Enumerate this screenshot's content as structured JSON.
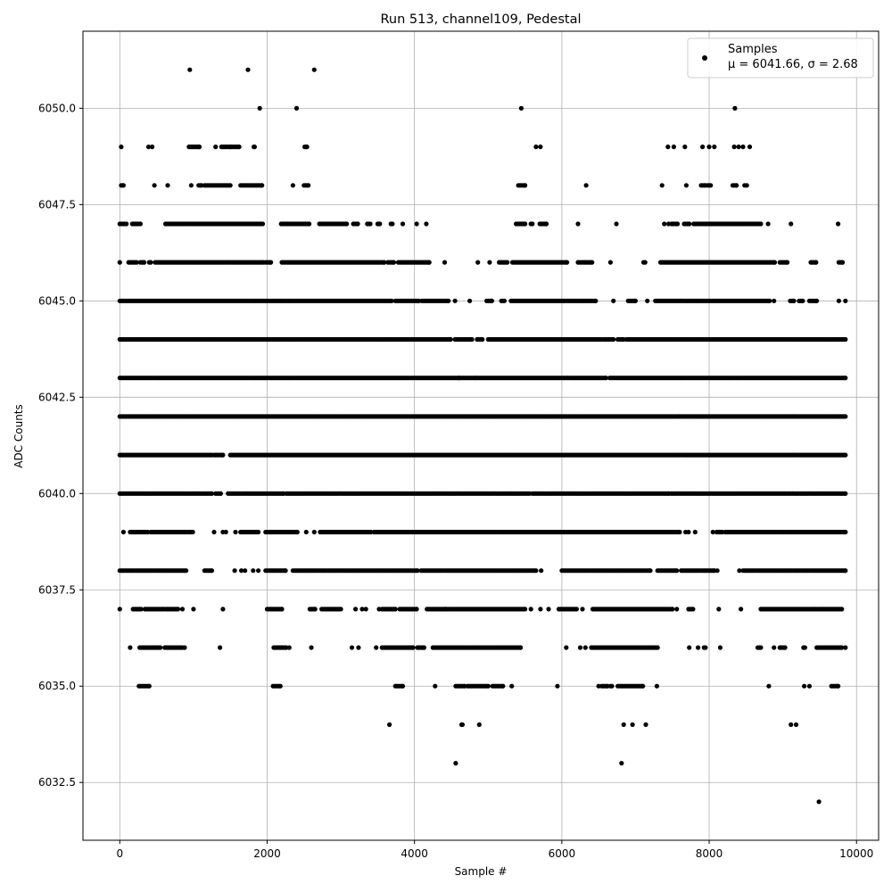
{
  "chart_data": {
    "type": "scatter",
    "title": "Run 513, channel109, Pedestal",
    "xlabel": "Sample #",
    "ylabel": "ADC Counts",
    "xlim": [
      -500,
      10300
    ],
    "ylim": [
      6031,
      6052
    ],
    "xticks": [
      0,
      2000,
      4000,
      6000,
      8000,
      10000
    ],
    "xtick_labels": [
      "0",
      "2000",
      "4000",
      "6000",
      "8000",
      "10000"
    ],
    "yticks": [
      6032.5,
      6035.0,
      6037.5,
      6040.0,
      6042.5,
      6045.0,
      6047.5,
      6050.0
    ],
    "ytick_labels": [
      "6032.5",
      "6035.0",
      "6037.5",
      "6040.0",
      "6042.5",
      "6045.0",
      "6047.5",
      "6050.0"
    ],
    "grid": true,
    "legend": {
      "position": "top-right",
      "entries": [
        "Samples",
        "μ = 6041.66, σ = 2.68"
      ]
    },
    "marker_color": "#000000",
    "series": [
      {
        "name": "Samples",
        "levels": [
          {
            "y": 6032,
            "x": [
              9490
            ]
          },
          {
            "y": 6033,
            "x": [
              4560,
              6810
            ]
          },
          {
            "y": 6034,
            "x": [
              3660,
              4640,
              4650,
              4880,
              6840,
              6960,
              7140,
              9110,
              9180
            ]
          },
          {
            "y": 6035,
            "x": [
              [
                260,
                400
              ],
              [
                2080,
                2180
              ],
              [
                3740,
                3840
              ],
              4280,
              [
                4560,
                4680
              ],
              [
                4720,
                5000
              ],
              [
                5060,
                5200
              ],
              5320,
              5940,
              6500,
              [
                6540,
                6620
              ],
              [
                6660,
                6680
              ],
              [
                6760,
                7100
              ],
              7290,
              8810,
              9290,
              9360,
              [
                9660,
                9750
              ]
            ]
          },
          {
            "y": 6036,
            "x": [
              140,
              [
                270,
                550
              ],
              [
                610,
                830
              ],
              850,
              880,
              1360,
              [
                2090,
                2260
              ],
              2300,
              2600,
              3150,
              3240,
              3480,
              [
                3560,
                3980
              ],
              [
                4040,
                4130
              ],
              [
                4250,
                5440
              ],
              6060,
              6250,
              6320,
              [
                6400,
                7300
              ],
              7730,
              7850,
              [
                7930,
                7950
              ],
              8150,
              [
                8660,
                8700
              ],
              8880,
              [
                8960,
                9030
              ],
              [
                9280,
                9300
              ],
              [
                9460,
                9800
              ],
              9850
            ]
          },
          {
            "y": 6037,
            "x": [
              0,
              [
                180,
                290
              ],
              [
                340,
                590
              ],
              [
                620,
                790
              ],
              850,
              1000,
              1400,
              [
                2000,
                2200
              ],
              [
                2580,
                2650
              ],
              [
                2740,
                3000
              ],
              3200,
              3290,
              3340,
              3520,
              [
                3560,
                3740
              ],
              [
                3800,
                4030
              ],
              [
                4170,
                4420
              ],
              [
                4430,
                5500
              ],
              5580,
              5710,
              5820,
              [
                5960,
                6200
              ],
              6280,
              [
                6420,
                7500
              ],
              7560,
              [
                7720,
                7780
              ],
              8130,
              8430,
              [
                8700,
                9800
              ]
            ]
          },
          {
            "y": 6038,
            "x": [
              [
                0,
                900
              ],
              [
                1150,
                1250
              ],
              1560,
              1650,
              1700,
              1810,
              1880,
              [
                1980,
                2250
              ],
              [
                2350,
                4040
              ],
              [
                4090,
                5650
              ],
              5720,
              [
                6000,
                7200
              ],
              [
                7300,
                7560
              ],
              [
                7620,
                8070
              ],
              8110,
              8410,
              [
                8460,
                9850
              ]
            ]
          },
          {
            "y": 6039,
            "x": [
              50,
              [
                140,
                380
              ],
              [
                420,
                890
              ],
              [
                920,
                990
              ],
              1280,
              1400,
              1440,
              1570,
              [
                1640,
                1880
              ],
              [
                1980,
                2410
              ],
              2530,
              2640,
              [
                2720,
                3410
              ],
              [
                3450,
                7600
              ],
              7680,
              7720,
              7810,
              8050,
              [
                8100,
                8180
              ],
              [
                8220,
                9850
              ]
            ]
          },
          {
            "y": 6040,
            "x": [
              [
                0,
                1250
              ],
              [
                1300,
                1370
              ],
              [
                1470,
                2220
              ],
              [
                2260,
                5560
              ],
              [
                5600,
                7450
              ],
              [
                7480,
                9850
              ]
            ]
          },
          {
            "y": 6041,
            "x": [
              [
                0,
                1250
              ],
              [
                1280,
                1400
              ],
              [
                1500,
                9850
              ]
            ]
          },
          {
            "y": 6042,
            "x": [
              [
                0,
                9850
              ]
            ]
          },
          {
            "y": 6043,
            "x": [
              [
                0,
                4600
              ],
              [
                4620,
                4830
              ],
              [
                4850,
                6600
              ],
              [
                6650,
                9850
              ]
            ]
          },
          {
            "y": 6044,
            "x": [
              [
                0,
                4490
              ],
              [
                4550,
                4780
              ],
              [
                4850,
                4920
              ],
              [
                5000,
                6540
              ],
              [
                6570,
                6700
              ],
              [
                6760,
                6840
              ],
              [
                6880,
                9850
              ]
            ]
          },
          {
            "y": 6045,
            "x": [
              [
                0,
                3690
              ],
              [
                3740,
                4060
              ],
              [
                4100,
                4460
              ],
              4550,
              4750,
              [
                4980,
                5050
              ],
              [
                5180,
                5220
              ],
              [
                5310,
                6460
              ],
              6700,
              [
                6900,
                7000
              ],
              7160,
              [
                7270,
                8820
              ],
              8880,
              [
                9100,
                9150
              ],
              [
                9220,
                9270
              ],
              [
                9360,
                9460
              ],
              9760,
              9850
            ]
          },
          {
            "y": 6046,
            "x": [
              0,
              [
                120,
                230
              ],
              [
                280,
                330
              ],
              400,
              420,
              [
                480,
                1950
              ],
              [
                1980,
                2050
              ],
              [
                2200,
                3590
              ],
              [
                3640,
                3720
              ],
              [
                3780,
                4200
              ],
              4410,
              4860,
              5020,
              [
                5150,
                5260
              ],
              [
                5330,
                6070
              ],
              [
                6220,
                6410
              ],
              6660,
              [
                7110,
                7130
              ],
              [
                7340,
                8890
              ],
              [
                8960,
                9060
              ],
              [
                9380,
                9450
              ],
              [
                9760,
                9810
              ]
            ]
          },
          {
            "y": 6047,
            "x": [
              [
                0,
                60
              ],
              90,
              [
                170,
                280
              ],
              [
                620,
                1940
              ],
              [
                2190,
                2570
              ],
              [
                2710,
                3080
              ],
              [
                3170,
                3230
              ],
              [
                3360,
                3400
              ],
              [
                3500,
                3530
              ],
              [
                3680,
                3700
              ],
              3840,
              4030,
              4160,
              [
                5380,
                5500
              ],
              [
                5580,
                5600
              ],
              [
                5700,
                5790
              ],
              6220,
              6740,
              7390,
              7450,
              [
                7490,
                7570
              ],
              [
                7660,
                7730
              ],
              [
                7790,
                8700
              ],
              8800,
              9110,
              9750
            ]
          },
          {
            "y": 6048,
            "x": [
              [
                20,
                50
              ],
              470,
              650,
              970,
              [
                1070,
                1110
              ],
              [
                1150,
                1500
              ],
              [
                1640,
                1930
              ],
              2350,
              [
                2500,
                2560
              ],
              [
                5410,
                5500
              ],
              6330,
              7360,
              7690,
              [
                7890,
                7950
              ],
              [
                7980,
                8020
              ],
              [
                8320,
                8370
              ],
              8480,
              8510
            ]
          },
          {
            "y": 6049,
            "x": [
              20,
              390,
              440,
              [
                940,
                1080
              ],
              1300,
              [
                1380,
                1500
              ],
              [
                1520,
                1620
              ],
              [
                1820,
                1830
              ],
              [
                2510,
                2540
              ],
              5650,
              5710,
              7440,
              7520,
              7670,
              7910,
              8000,
              8070,
              8340,
              8400,
              8460,
              8550
            ]
          },
          {
            "y": 6050,
            "x": [
              1900,
              2400,
              5450,
              8350
            ]
          },
          {
            "y": 6051,
            "x": [
              950,
              1740,
              2640
            ]
          }
        ]
      }
    ]
  }
}
